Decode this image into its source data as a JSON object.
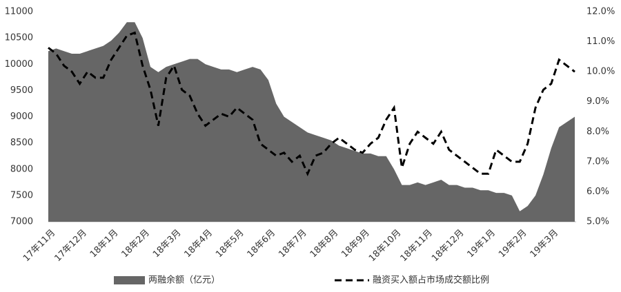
{
  "chart_data": {
    "type": "combo",
    "categories": [
      "17年11月",
      null,
      null,
      null,
      "17年12月",
      null,
      null,
      null,
      "18年1月",
      null,
      null,
      null,
      "18年2月",
      null,
      null,
      null,
      "18年3月",
      null,
      null,
      null,
      "18年4月",
      null,
      null,
      null,
      "18年5月",
      null,
      null,
      null,
      "18年6月",
      null,
      null,
      null,
      "18年7月",
      null,
      null,
      null,
      "18年8月",
      null,
      null,
      null,
      "18年9月",
      null,
      null,
      null,
      "18年10月",
      null,
      null,
      null,
      "18年11月",
      null,
      null,
      null,
      "18年12月",
      null,
      null,
      null,
      "19年1月",
      null,
      null,
      null,
      "19年2月",
      null,
      null,
      null,
      "19年3月",
      null,
      null,
      null
    ],
    "series": [
      {
        "name": "两融余额（亿元）",
        "type": "area",
        "color": "#666666",
        "axis": "y",
        "values": [
          10250,
          10300,
          10250,
          10200,
          10200,
          10250,
          10300,
          10350,
          10450,
          10600,
          10800,
          10800,
          10500,
          9950,
          9850,
          9950,
          10000,
          10050,
          10100,
          10100,
          10000,
          9950,
          9900,
          9900,
          9850,
          9900,
          9950,
          9900,
          9700,
          9250,
          9000,
          8900,
          8800,
          8700,
          8650,
          8600,
          8550,
          8450,
          8400,
          8350,
          8300,
          8300,
          8250,
          8250,
          8000,
          7700,
          7700,
          7750,
          7700,
          7750,
          7800,
          7700,
          7700,
          7650,
          7650,
          7600,
          7600,
          7550,
          7550,
          7500,
          7200,
          7300,
          7500,
          7900,
          8400,
          8800,
          8900,
          9000
        ]
      },
      {
        "name": "融资买入额占市场成交额比例",
        "type": "line",
        "color": "#000000",
        "axis": "y2",
        "values": [
          10.8,
          10.6,
          10.2,
          10.0,
          9.6,
          10.0,
          9.8,
          9.8,
          10.4,
          10.8,
          11.2,
          11.3,
          10.2,
          9.4,
          8.2,
          9.8,
          10.2,
          9.4,
          9.2,
          8.6,
          8.2,
          8.4,
          8.6,
          8.5,
          8.8,
          8.6,
          8.4,
          7.6,
          7.4,
          7.2,
          7.3,
          7.0,
          7.2,
          6.6,
          7.2,
          7.3,
          7.6,
          7.8,
          7.6,
          7.4,
          7.3,
          7.6,
          7.8,
          8.4,
          8.8,
          6.8,
          7.6,
          8.0,
          7.8,
          7.6,
          8.0,
          7.4,
          7.2,
          7.0,
          6.8,
          6.6,
          6.6,
          7.4,
          7.2,
          7.0,
          7.0,
          7.6,
          8.8,
          9.4,
          9.6,
          10.4,
          10.2,
          10.0
        ]
      }
    ],
    "ylim": [
      7000,
      11000
    ],
    "yticks": [
      7000,
      7500,
      8000,
      8500,
      9000,
      9500,
      10000,
      10500,
      11000
    ],
    "y2lim": [
      5,
      12
    ],
    "y2ticks": [
      {
        "value": 5,
        "label": "5.0%"
      },
      {
        "value": 6,
        "label": "6.0%"
      },
      {
        "value": 7,
        "label": "7.0%"
      },
      {
        "value": 8,
        "label": "8.0%"
      },
      {
        "value": 9,
        "label": "9.0%"
      },
      {
        "value": 10,
        "label": "10.0%"
      },
      {
        "value": 11,
        "label": "11.0%"
      },
      {
        "value": 12,
        "label": "12.0%"
      }
    ],
    "grid": false
  }
}
